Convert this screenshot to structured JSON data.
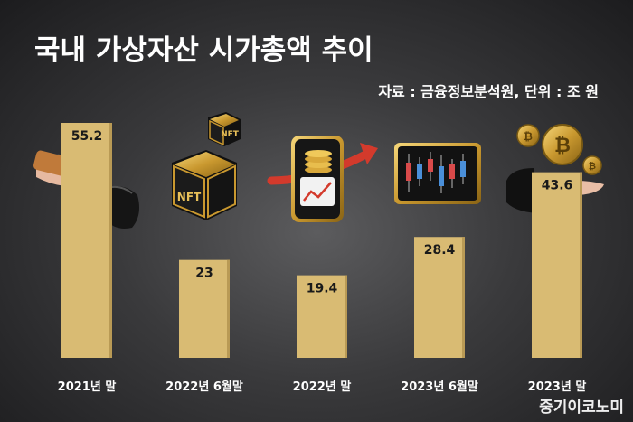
{
  "header": {
    "title": "국내 가상자산 시가총액 추이",
    "source": "자료 : 금융정보분석원, 단위 : 조 원"
  },
  "colors": {
    "bar": "#d9bb73",
    "bar_shadow": "#b99a55",
    "text": "#ffffff",
    "accent_red": "#d33a2c",
    "gold": "#c9982f"
  },
  "icons": [
    "smartphone-hand-icon",
    "nft-cube-icon",
    "phone-coins-chart-icon",
    "candlestick-chart-icon",
    "bitcoin-coins-hand-icon"
  ],
  "watermark": "중기이코노미",
  "chart_data": {
    "type": "bar",
    "title": "국내 가상자산 시가총액 추이",
    "unit": "조 원",
    "categories": [
      "2021년 말",
      "2022년 6월말",
      "2022년 말",
      "2023년 6월말",
      "2023년 말"
    ],
    "values": [
      55.2,
      23,
      19.4,
      28.4,
      43.6
    ],
    "value_labels": [
      "55.2",
      "23",
      "19.4",
      "28.4",
      "43.6"
    ],
    "ylim": [
      0,
      55.2
    ],
    "grid": false,
    "legend": "none"
  }
}
